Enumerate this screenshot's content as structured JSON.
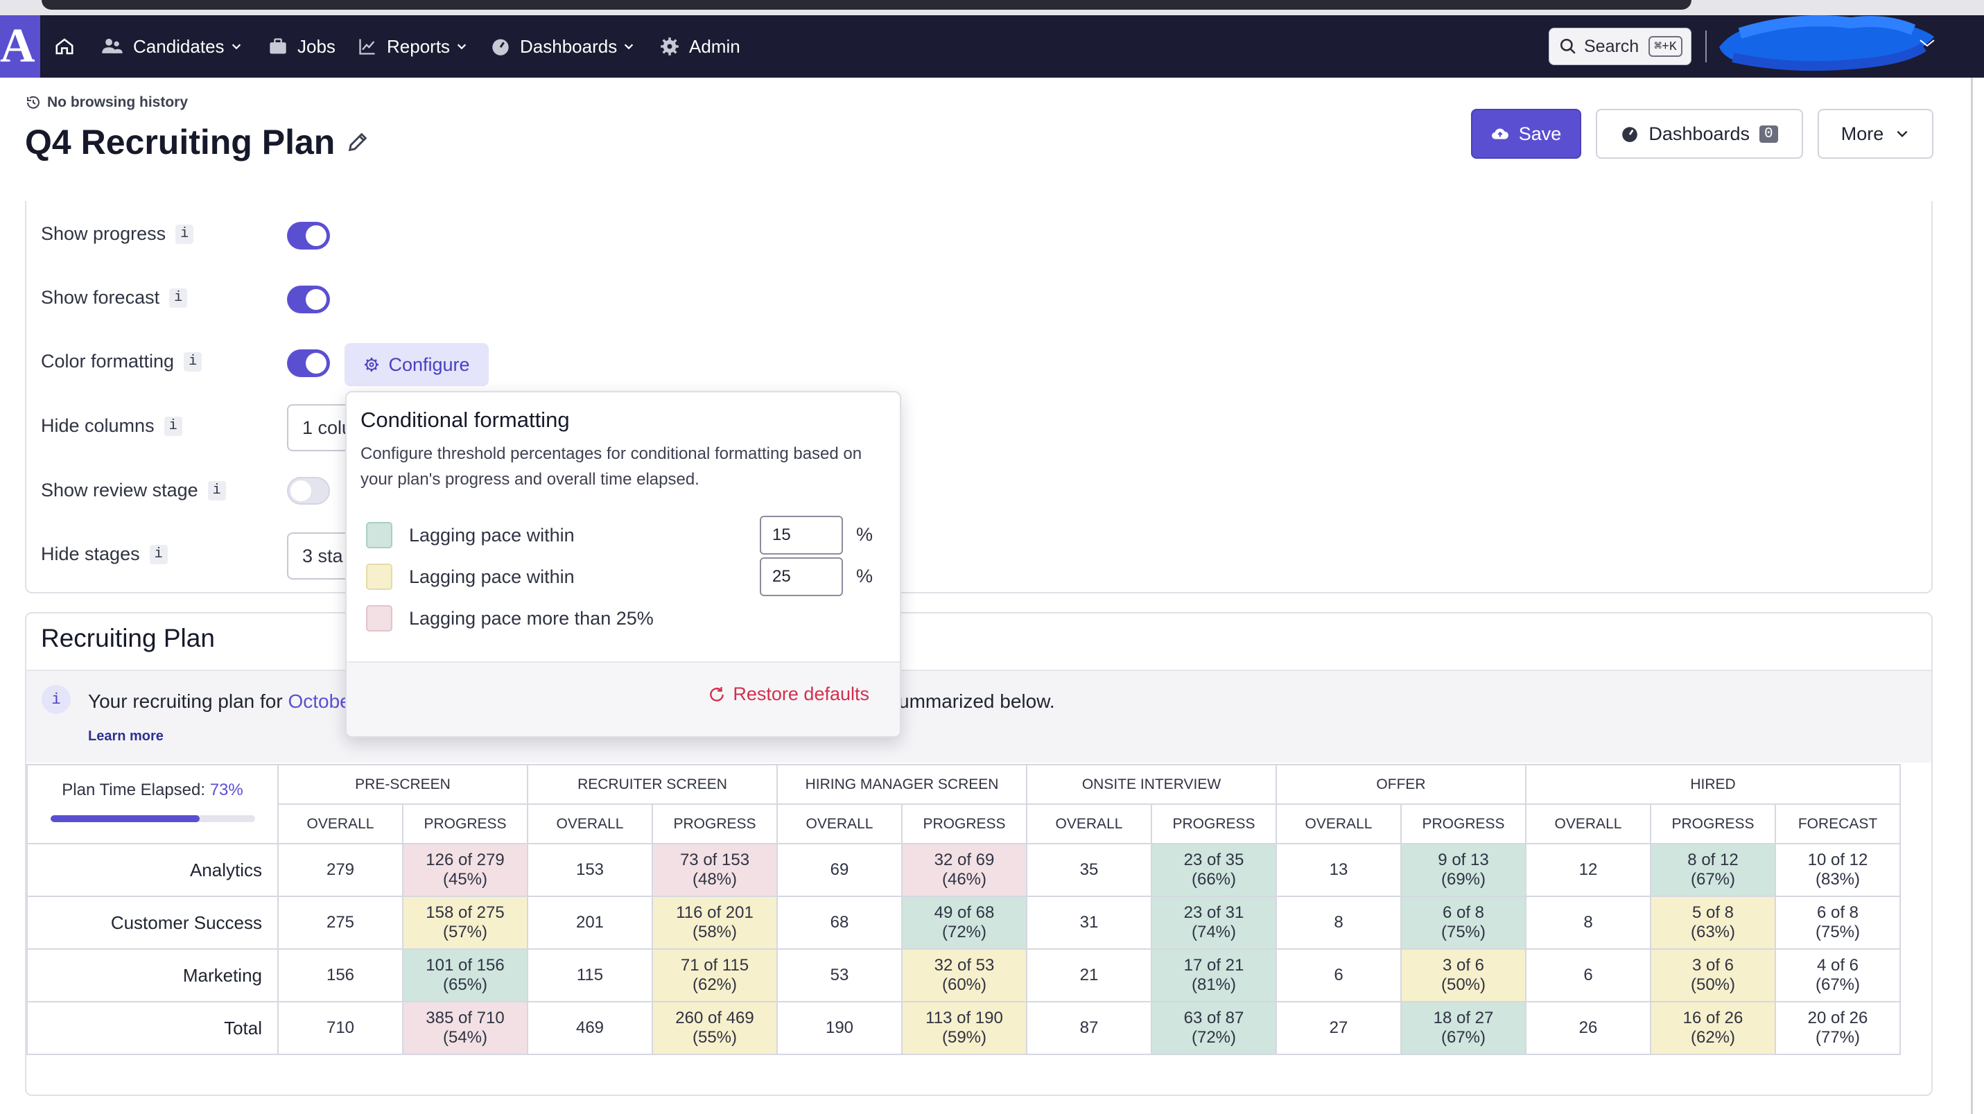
{
  "nav": {
    "logo": "A",
    "items": [
      {
        "label": "Candidates",
        "dropdown": true
      },
      {
        "label": "Jobs",
        "dropdown": false
      },
      {
        "label": "Reports",
        "dropdown": true
      },
      {
        "label": "Dashboards",
        "dropdown": true
      },
      {
        "label": "Admin",
        "dropdown": false
      }
    ],
    "search_label": "Search",
    "search_shortcut": "⌘+K"
  },
  "header": {
    "history": "No browsing history",
    "title": "Q4 Recruiting Plan",
    "save_label": "Save",
    "dashboards_label": "Dashboards",
    "dashboards_count": "0",
    "more_label": "More"
  },
  "settings": {
    "show_progress": {
      "label": "Show progress",
      "enabled": true
    },
    "show_forecast": {
      "label": "Show forecast",
      "enabled": true
    },
    "color_formatting": {
      "label": "Color formatting",
      "enabled": true,
      "configure_label": "Configure"
    },
    "hide_columns": {
      "label": "Hide columns",
      "value": "1 colu"
    },
    "show_review_stage": {
      "label": "Show review stage",
      "enabled": false
    },
    "hide_stages": {
      "label": "Hide stages",
      "value": "3 sta"
    },
    "info_glyph": "i"
  },
  "popover": {
    "title": "Conditional formatting",
    "description": "Configure threshold percentages for conditional formatting based on your plan's progress and overall time elapsed.",
    "rows": [
      {
        "label": "Lagging pace within",
        "value": "15",
        "unit": "%",
        "color": "#cfe5de"
      },
      {
        "label": "Lagging pace within",
        "value": "25",
        "unit": "%",
        "color": "#f7f0cc"
      },
      {
        "label": "Lagging pace more than 25%",
        "color": "#f2e0e4"
      }
    ],
    "restore_label": "Restore defaults"
  },
  "plan": {
    "title": "Recruiting Plan",
    "banner_prefix": "Your recruiting plan for ",
    "banner_link": "Octobe",
    "banner_suffix": "ummarized below.",
    "learn_more": "Learn more",
    "elapsed_label": "Plan Time Elapsed: ",
    "elapsed_value": "73%",
    "elapsed_fraction": 0.73,
    "groups": [
      "PRE-SCREEN",
      "RECRUITER SCREEN",
      "HIRING MANAGER SCREEN",
      "ONSITE INTERVIEW",
      "OFFER",
      "HIRED"
    ],
    "sub_overall": "OVERALL",
    "sub_progress": "PROGRESS",
    "sub_forecast": "FORECAST",
    "rows": [
      {
        "label": "Analytics",
        "cells": [
          {
            "t": "279"
          },
          {
            "t": "126 of 279",
            "p": "(45%)",
            "c": "red"
          },
          {
            "t": "153"
          },
          {
            "t": "73 of 153",
            "p": "(48%)",
            "c": "red"
          },
          {
            "t": "69"
          },
          {
            "t": "32 of 69",
            "p": "(46%)",
            "c": "red"
          },
          {
            "t": "35"
          },
          {
            "t": "23 of 35",
            "p": "(66%)",
            "c": "green"
          },
          {
            "t": "13"
          },
          {
            "t": "9 of 13",
            "p": "(69%)",
            "c": "green"
          },
          {
            "t": "12"
          },
          {
            "t": "8 of 12",
            "p": "(67%)",
            "c": "green"
          },
          {
            "t": "10 of 12",
            "p": "(83%)"
          }
        ]
      },
      {
        "label": "Customer Success",
        "cells": [
          {
            "t": "275"
          },
          {
            "t": "158 of 275",
            "p": "(57%)",
            "c": "yellow"
          },
          {
            "t": "201"
          },
          {
            "t": "116 of 201",
            "p": "(58%)",
            "c": "yellow"
          },
          {
            "t": "68"
          },
          {
            "t": "49 of 68",
            "p": "(72%)",
            "c": "green"
          },
          {
            "t": "31"
          },
          {
            "t": "23 of 31",
            "p": "(74%)",
            "c": "green"
          },
          {
            "t": "8"
          },
          {
            "t": "6 of 8",
            "p": "(75%)",
            "c": "green"
          },
          {
            "t": "8"
          },
          {
            "t": "5 of 8",
            "p": "(63%)",
            "c": "yellow"
          },
          {
            "t": "6 of 8",
            "p": "(75%)"
          }
        ]
      },
      {
        "label": "Marketing",
        "cells": [
          {
            "t": "156"
          },
          {
            "t": "101 of 156",
            "p": "(65%)",
            "c": "green"
          },
          {
            "t": "115"
          },
          {
            "t": "71 of 115",
            "p": "(62%)",
            "c": "yellow"
          },
          {
            "t": "53"
          },
          {
            "t": "32 of 53",
            "p": "(60%)",
            "c": "yellow"
          },
          {
            "t": "21"
          },
          {
            "t": "17 of 21",
            "p": "(81%)",
            "c": "green"
          },
          {
            "t": "6"
          },
          {
            "t": "3 of 6",
            "p": "(50%)",
            "c": "yellow"
          },
          {
            "t": "6"
          },
          {
            "t": "3 of 6",
            "p": "(50%)",
            "c": "yellow"
          },
          {
            "t": "4 of 6",
            "p": "(67%)"
          }
        ]
      },
      {
        "label": "Total",
        "cells": [
          {
            "t": "710"
          },
          {
            "t": "385 of 710",
            "p": "(54%)",
            "c": "red"
          },
          {
            "t": "469"
          },
          {
            "t": "260 of 469",
            "p": "(55%)",
            "c": "yellow"
          },
          {
            "t": "190"
          },
          {
            "t": "113 of 190",
            "p": "(59%)",
            "c": "yellow"
          },
          {
            "t": "87"
          },
          {
            "t": "63 of 87",
            "p": "(72%)",
            "c": "green"
          },
          {
            "t": "27"
          },
          {
            "t": "18 of 27",
            "p": "(67%)",
            "c": "green"
          },
          {
            "t": "26"
          },
          {
            "t": "16 of 26",
            "p": "(62%)",
            "c": "yellow"
          },
          {
            "t": "20 of 26",
            "p": "(77%)"
          }
        ]
      }
    ]
  },
  "colors": {
    "nav_bg": "#1b1b33",
    "accent": "#5b4fd1",
    "green": "#cfe5de",
    "yellow": "#f7f0cc",
    "red": "#f2e0e4",
    "restore": "#d32f4c"
  }
}
